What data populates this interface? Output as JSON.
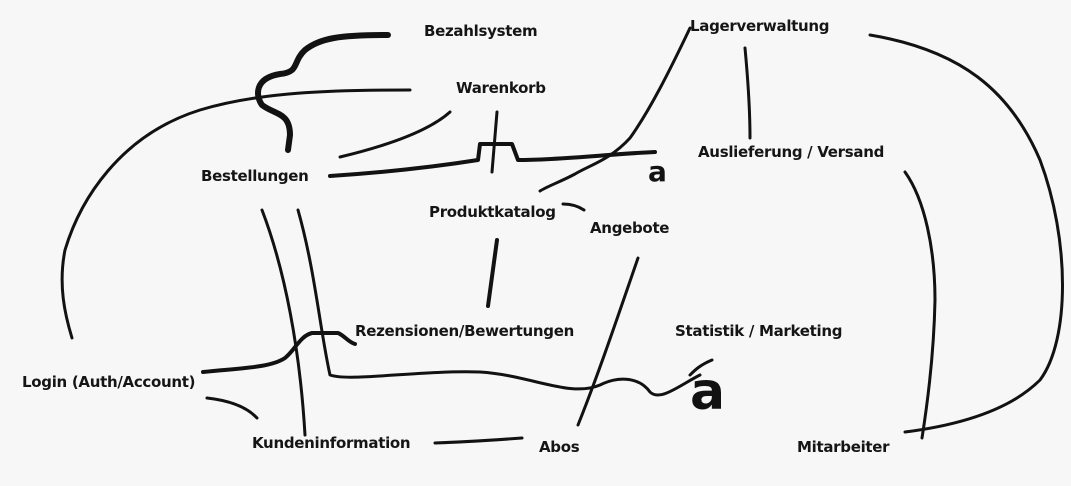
{
  "diagram": {
    "nodes": {
      "bezahlsystem": "Bezahlsystem",
      "lagerverwaltung": "Lagerverwaltung",
      "warenkorb": "Warenkorb",
      "auslieferung": "Auslieferung / Versand",
      "bestellungen": "Bestellungen",
      "produktkatalog": "Produktkatalog",
      "angebote": "Angebote",
      "rezensionen": "Rezensionen/Bewertungen",
      "statistik": "Statistik / Marketing",
      "login": "Login (Auth/Account)",
      "kundeninformation": "Kundeninformation",
      "abos": "Abos",
      "mitarbeiter": "Mitarbeiter"
    },
    "marks": {
      "small_a": "a",
      "large_a": "a"
    }
  }
}
